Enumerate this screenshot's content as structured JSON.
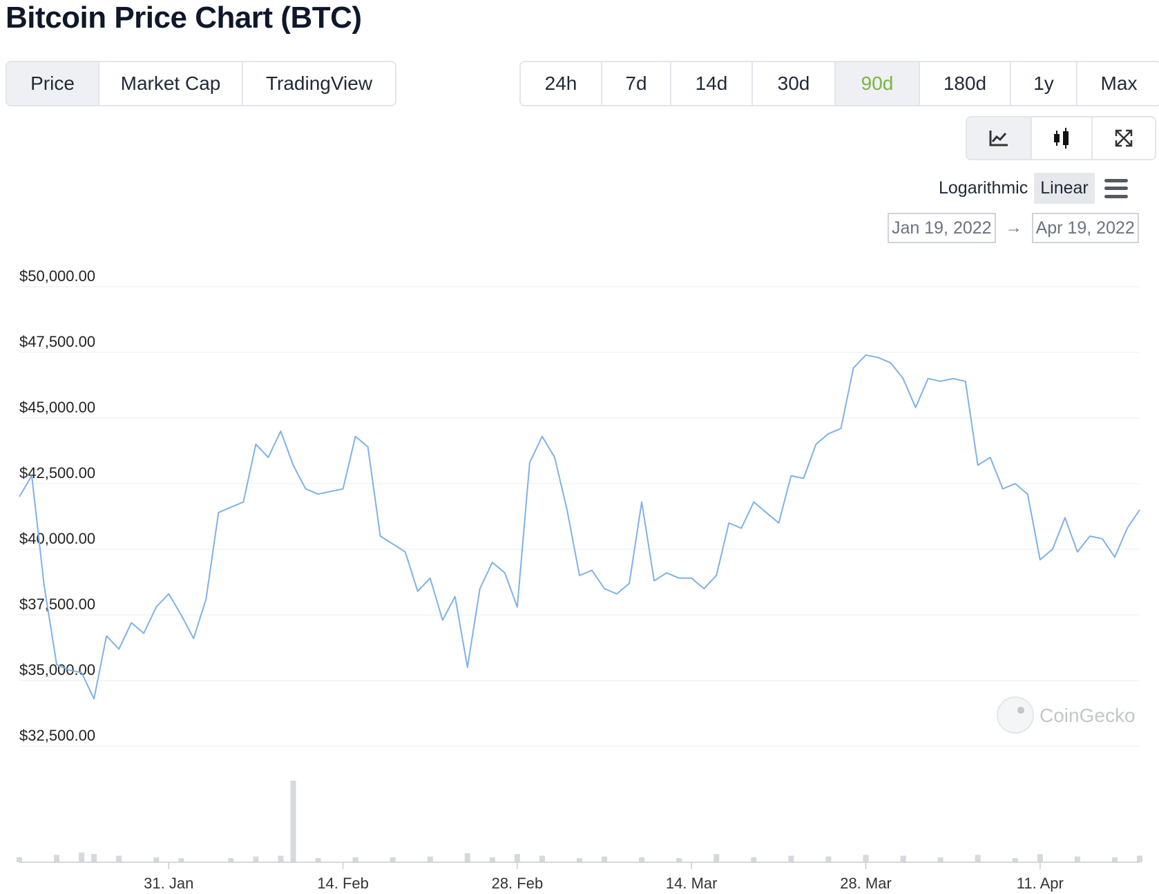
{
  "page": {
    "title": "Bitcoin Price Chart (BTC)"
  },
  "view_tabs": [
    {
      "label": "Price",
      "active": true
    },
    {
      "label": "Market Cap",
      "active": false
    },
    {
      "label": "TradingView",
      "active": false
    }
  ],
  "range_tabs": [
    {
      "label": "24h",
      "active": false
    },
    {
      "label": "7d",
      "active": false
    },
    {
      "label": "14d",
      "active": false
    },
    {
      "label": "30d",
      "active": false
    },
    {
      "label": "90d",
      "active": true
    },
    {
      "label": "180d",
      "active": false
    },
    {
      "label": "1y",
      "active": false
    },
    {
      "label": "Max",
      "active": false
    }
  ],
  "tools": [
    {
      "icon": "line-chart-icon",
      "active": true
    },
    {
      "icon": "candlestick-icon",
      "active": false
    },
    {
      "icon": "fullscreen-icon",
      "active": false
    }
  ],
  "scale": {
    "options": [
      "Logarithmic",
      "Linear"
    ],
    "selected": "Linear"
  },
  "date_range": {
    "from": "Jan 19, 2022",
    "arrow": "→",
    "to": "Apr 19, 2022"
  },
  "watermark": {
    "text": "CoinGecko"
  },
  "colors": {
    "line": "#7eb2e6",
    "grid": "#e9ecef",
    "volume": "#d5d8dc",
    "active_range": "#7cb342"
  },
  "chart_data": {
    "type": "line",
    "ylim": [
      32500,
      50000
    ],
    "yticks": [
      50000,
      47500,
      45000,
      42500,
      40000,
      37500,
      35000,
      32500
    ],
    "ytick_labels": [
      "$50,000.00",
      "$47,500.00",
      "$45,000.00",
      "$42,500.00",
      "$40,000.00",
      "$37,500.00",
      "$35,000.00",
      "$32,500.00"
    ],
    "xtick_labels": [
      "31. Jan",
      "14. Feb",
      "28. Feb",
      "14. Mar",
      "28. Mar",
      "11. Apr"
    ],
    "xticks": [
      "2022-01-31",
      "2022-02-14",
      "2022-02-28",
      "2022-03-14",
      "2022-03-28",
      "2022-04-11"
    ],
    "xlim": [
      "2022-01-19",
      "2022-04-19"
    ],
    "series": [
      {
        "points": [
          [
            "2022-01-19",
            42000
          ],
          [
            "2022-01-20",
            42800
          ],
          [
            "2022-01-21",
            38600
          ],
          [
            "2022-01-22",
            35600
          ],
          [
            "2022-01-23",
            35400
          ],
          [
            "2022-01-24",
            35300
          ],
          [
            "2022-01-25",
            34300
          ],
          [
            "2022-01-26",
            36700
          ],
          [
            "2022-01-27",
            36200
          ],
          [
            "2022-01-28",
            37200
          ],
          [
            "2022-01-29",
            36800
          ],
          [
            "2022-01-30",
            37800
          ],
          [
            "2022-01-31",
            38300
          ],
          [
            "2022-02-01",
            37500
          ],
          [
            "2022-02-02",
            36600
          ],
          [
            "2022-02-03",
            38100
          ],
          [
            "2022-02-04",
            41400
          ],
          [
            "2022-02-05",
            41600
          ],
          [
            "2022-02-06",
            41800
          ],
          [
            "2022-02-07",
            44000
          ],
          [
            "2022-02-08",
            43500
          ],
          [
            "2022-02-09",
            44500
          ],
          [
            "2022-02-10",
            43200
          ],
          [
            "2022-02-11",
            42300
          ],
          [
            "2022-02-12",
            42100
          ],
          [
            "2022-02-13",
            42200
          ],
          [
            "2022-02-14",
            42300
          ],
          [
            "2022-02-15",
            44300
          ],
          [
            "2022-02-16",
            43900
          ],
          [
            "2022-02-17",
            40500
          ],
          [
            "2022-02-18",
            40200
          ],
          [
            "2022-02-19",
            39900
          ],
          [
            "2022-02-20",
            38400
          ],
          [
            "2022-02-21",
            38900
          ],
          [
            "2022-02-22",
            37300
          ],
          [
            "2022-02-23",
            38200
          ],
          [
            "2022-02-24",
            35500
          ],
          [
            "2022-02-25",
            38500
          ],
          [
            "2022-02-26",
            39500
          ],
          [
            "2022-02-27",
            39100
          ],
          [
            "2022-02-28",
            37800
          ],
          [
            "2022-03-01",
            43300
          ],
          [
            "2022-03-02",
            44300
          ],
          [
            "2022-03-03",
            43500
          ],
          [
            "2022-03-04",
            41500
          ],
          [
            "2022-03-05",
            39000
          ],
          [
            "2022-03-06",
            39200
          ],
          [
            "2022-03-07",
            38500
          ],
          [
            "2022-03-08",
            38300
          ],
          [
            "2022-03-09",
            38700
          ],
          [
            "2022-03-10",
            41800
          ],
          [
            "2022-03-11",
            38800
          ],
          [
            "2022-03-12",
            39100
          ],
          [
            "2022-03-13",
            38900
          ],
          [
            "2022-03-14",
            38900
          ],
          [
            "2022-03-15",
            38500
          ],
          [
            "2022-03-16",
            39000
          ],
          [
            "2022-03-17",
            41000
          ],
          [
            "2022-03-18",
            40800
          ],
          [
            "2022-03-19",
            41800
          ],
          [
            "2022-03-20",
            41400
          ],
          [
            "2022-03-21",
            41000
          ],
          [
            "2022-03-22",
            42800
          ],
          [
            "2022-03-23",
            42700
          ],
          [
            "2022-03-24",
            44000
          ],
          [
            "2022-03-25",
            44400
          ],
          [
            "2022-03-26",
            44600
          ],
          [
            "2022-03-27",
            46900
          ],
          [
            "2022-03-28",
            47400
          ],
          [
            "2022-03-29",
            47300
          ],
          [
            "2022-03-30",
            47100
          ],
          [
            "2022-03-31",
            46500
          ],
          [
            "2022-04-01",
            45400
          ],
          [
            "2022-04-02",
            46500
          ],
          [
            "2022-04-03",
            46400
          ],
          [
            "2022-04-04",
            46500
          ],
          [
            "2022-04-05",
            46400
          ],
          [
            "2022-04-06",
            43200
          ],
          [
            "2022-04-07",
            43500
          ],
          [
            "2022-04-08",
            42300
          ],
          [
            "2022-04-09",
            42500
          ],
          [
            "2022-04-10",
            42100
          ],
          [
            "2022-04-11",
            39600
          ],
          [
            "2022-04-12",
            40000
          ],
          [
            "2022-04-13",
            41200
          ],
          [
            "2022-04-14",
            39900
          ],
          [
            "2022-04-15",
            40500
          ],
          [
            "2022-04-16",
            40400
          ],
          [
            "2022-04-17",
            39700
          ],
          [
            "2022-04-18",
            40800
          ],
          [
            "2022-04-19",
            41500
          ]
        ]
      }
    ],
    "volume": {
      "points": [
        [
          "2022-01-19",
          0.06
        ],
        [
          "2022-01-22",
          0.09
        ],
        [
          "2022-01-24",
          0.12
        ],
        [
          "2022-01-25",
          0.1
        ],
        [
          "2022-01-27",
          0.08
        ],
        [
          "2022-01-30",
          0.06
        ],
        [
          "2022-02-01",
          0.05
        ],
        [
          "2022-02-05",
          0.05
        ],
        [
          "2022-02-07",
          0.07
        ],
        [
          "2022-02-09",
          0.08
        ],
        [
          "2022-02-10",
          1.0
        ],
        [
          "2022-02-12",
          0.05
        ],
        [
          "2022-02-15",
          0.06
        ],
        [
          "2022-02-18",
          0.06
        ],
        [
          "2022-02-21",
          0.07
        ],
        [
          "2022-02-24",
          0.11
        ],
        [
          "2022-02-26",
          0.06
        ],
        [
          "2022-02-28",
          0.1
        ],
        [
          "2022-03-02",
          0.08
        ],
        [
          "2022-03-05",
          0.05
        ],
        [
          "2022-03-07",
          0.07
        ],
        [
          "2022-03-10",
          0.06
        ],
        [
          "2022-03-13",
          0.05
        ],
        [
          "2022-03-16",
          0.1
        ],
        [
          "2022-03-19",
          0.06
        ],
        [
          "2022-03-22",
          0.08
        ],
        [
          "2022-03-25",
          0.07
        ],
        [
          "2022-03-28",
          0.09
        ],
        [
          "2022-03-31",
          0.08
        ],
        [
          "2022-04-03",
          0.06
        ],
        [
          "2022-04-06",
          0.09
        ],
        [
          "2022-04-09",
          0.05
        ],
        [
          "2022-04-11",
          0.1
        ],
        [
          "2022-04-14",
          0.07
        ],
        [
          "2022-04-17",
          0.06
        ],
        [
          "2022-04-19",
          0.08
        ]
      ]
    }
  }
}
